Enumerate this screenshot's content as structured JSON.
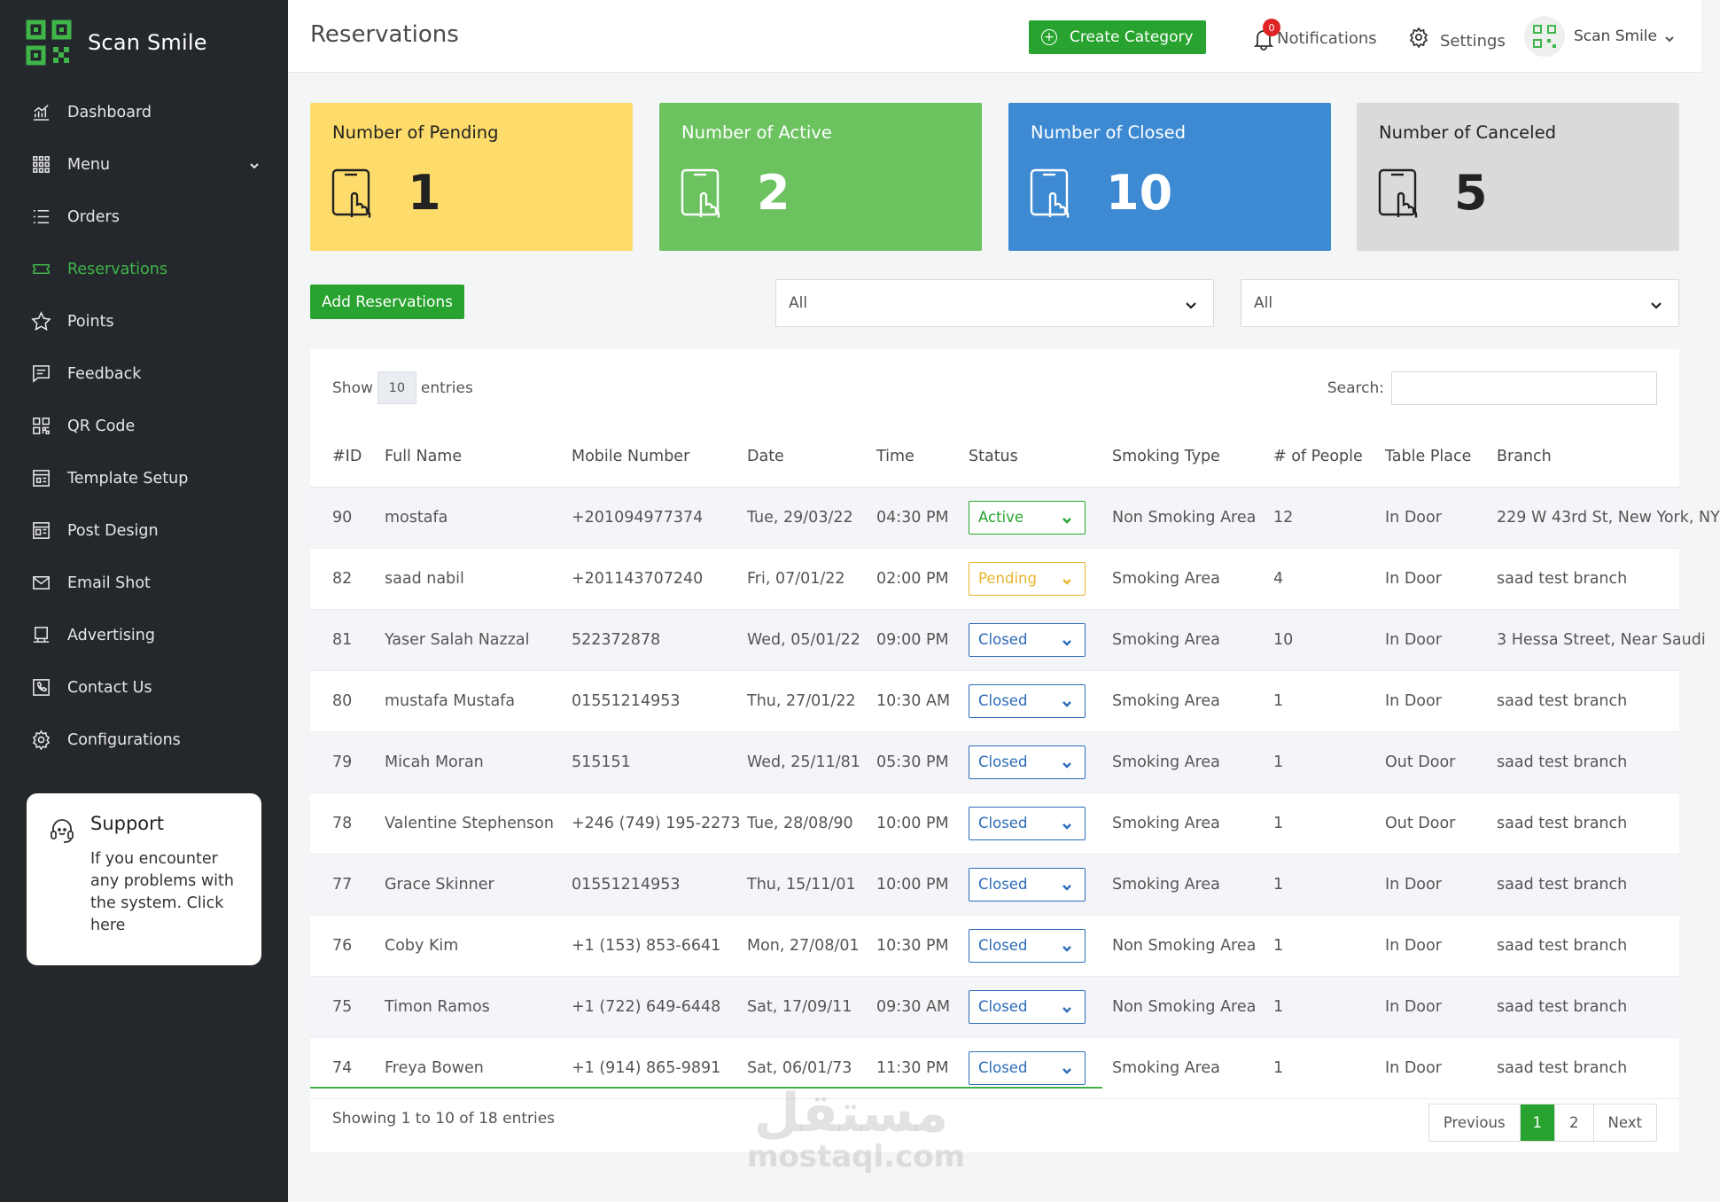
{
  "brand": {
    "name": "Scan Smile"
  },
  "sidebar": {
    "items": [
      {
        "label": "Dashboard",
        "icon": "chart-icon"
      },
      {
        "label": "Menu",
        "icon": "grid-icon"
      },
      {
        "label": "Orders",
        "icon": "list-icon"
      },
      {
        "label": "Reservations",
        "icon": "ticket-icon"
      },
      {
        "label": "Points",
        "icon": "star-icon"
      },
      {
        "label": "Feedback",
        "icon": "message-icon"
      },
      {
        "label": "QR Code",
        "icon": "qr-icon"
      },
      {
        "label": "Template Setup",
        "icon": "template-icon"
      },
      {
        "label": "Post Design",
        "icon": "post-icon"
      },
      {
        "label": "Email Shot",
        "icon": "mail-icon"
      },
      {
        "label": "Advertising",
        "icon": "monitor-icon"
      },
      {
        "label": "Contact Us",
        "icon": "phone-icon"
      },
      {
        "label": "Configurations",
        "icon": "gear-icon"
      }
    ],
    "active_item": "Reservations",
    "accent_color": "#3fb54a"
  },
  "support": {
    "title": "Support",
    "text": "If you encounter any problems with the system. Click here"
  },
  "header": {
    "title": "Reservations",
    "create_button": "Create Category",
    "notifications_label": "Notifications",
    "notifications_count": "0",
    "settings_label": "Settings",
    "user_name": "Scan Smile"
  },
  "stats": {
    "pending": {
      "title": "Number of Pending",
      "value": "1",
      "color": "#fddc6b"
    },
    "active": {
      "title": "Number of Active",
      "value": "2",
      "color": "#6bc25f"
    },
    "closed": {
      "title": "Number of Closed",
      "value": "10",
      "color": "#3d8ad2"
    },
    "canceled": {
      "title": "Number of Canceled",
      "value": "5",
      "color": "#dadada"
    }
  },
  "controls": {
    "add_button": "Add Reservations",
    "filter_1": "All",
    "filter_2": "All"
  },
  "table": {
    "show_label": "Show",
    "page_length": "10",
    "entries_label": "entries",
    "search_label": "Search:",
    "search_value": "",
    "columns": [
      "#ID",
      "Full Name",
      "Mobile Number",
      "Date",
      "Time",
      "Status",
      "Smoking Type",
      "# of People",
      "Table Place",
      "Branch"
    ],
    "rows": [
      {
        "id": "90",
        "name": "mostafa",
        "mobile": "+201094977374",
        "date": "Tue, 29/03/22",
        "time": "04:30 PM",
        "status": "Active",
        "smoking": "Non Smoking Area",
        "people": "12",
        "place": "In Door",
        "branch": "229 W 43rd St, New York, NY"
      },
      {
        "id": "82",
        "name": "saad nabil",
        "mobile": "+201143707240",
        "date": "Fri, 07/01/22",
        "time": "02:00 PM",
        "status": "Pending",
        "smoking": "Smoking Area",
        "people": "4",
        "place": "In Door",
        "branch": "saad test branch"
      },
      {
        "id": "81",
        "name": "Yaser Salah Nazzal",
        "mobile": "522372878",
        "date": "Wed, 05/01/22",
        "time": "09:00 PM",
        "status": "Closed",
        "smoking": "Smoking Area",
        "people": "10",
        "place": "In Door",
        "branch": "3 Hessa Street, Near Saudi"
      },
      {
        "id": "80",
        "name": "mustafa Mustafa",
        "mobile": "01551214953",
        "date": "Thu, 27/01/22",
        "time": "10:30 AM",
        "status": "Closed",
        "smoking": "Smoking Area",
        "people": "1",
        "place": "In Door",
        "branch": "saad test branch"
      },
      {
        "id": "79",
        "name": "Micah Moran",
        "mobile": "515151",
        "date": "Wed, 25/11/81",
        "time": "05:30 PM",
        "status": "Closed",
        "smoking": "Smoking Area",
        "people": "1",
        "place": "Out Door",
        "branch": "saad test branch"
      },
      {
        "id": "78",
        "name": "Valentine Stephenson",
        "mobile": "+246 (749) 195-2273",
        "date": "Tue, 28/08/90",
        "time": "10:00 PM",
        "status": "Closed",
        "smoking": "Smoking Area",
        "people": "1",
        "place": "Out Door",
        "branch": "saad test branch"
      },
      {
        "id": "77",
        "name": "Grace Skinner",
        "mobile": "01551214953",
        "date": "Thu, 15/11/01",
        "time": "10:00 PM",
        "status": "Closed",
        "smoking": "Smoking Area",
        "people": "1",
        "place": "In Door",
        "branch": "saad test branch"
      },
      {
        "id": "76",
        "name": "Coby Kim",
        "mobile": "+1 (153) 853-6641",
        "date": "Mon, 27/08/01",
        "time": "10:30 PM",
        "status": "Closed",
        "smoking": "Non Smoking Area",
        "people": "1",
        "place": "In Door",
        "branch": "saad test branch"
      },
      {
        "id": "75",
        "name": "Timon Ramos",
        "mobile": "+1 (722) 649-6448",
        "date": "Sat, 17/09/11",
        "time": "09:30 AM",
        "status": "Closed",
        "smoking": "Non Smoking Area",
        "people": "1",
        "place": "In Door",
        "branch": "saad test branch"
      },
      {
        "id": "74",
        "name": "Freya Bowen",
        "mobile": "+1 (914) 865-9891",
        "date": "Sat, 06/01/73",
        "time": "11:30 PM",
        "status": "Closed",
        "smoking": "Smoking Area",
        "people": "1",
        "place": "In Door",
        "branch": "saad test branch"
      }
    ],
    "info": "Showing 1 to 10 of 18 entries",
    "pagination": {
      "previous": "Previous",
      "pages": [
        "1",
        "2"
      ],
      "current": "1",
      "next": "Next"
    }
  },
  "watermark": {
    "arabic": "مستقل",
    "latin": "mostaql.com"
  },
  "colors": {
    "primary_green": "#28a32f",
    "sidebar_bg": "#24272b",
    "status_active": "#28a32f",
    "status_pending": "#e7b52c",
    "status_closed": "#2b6bb8"
  }
}
